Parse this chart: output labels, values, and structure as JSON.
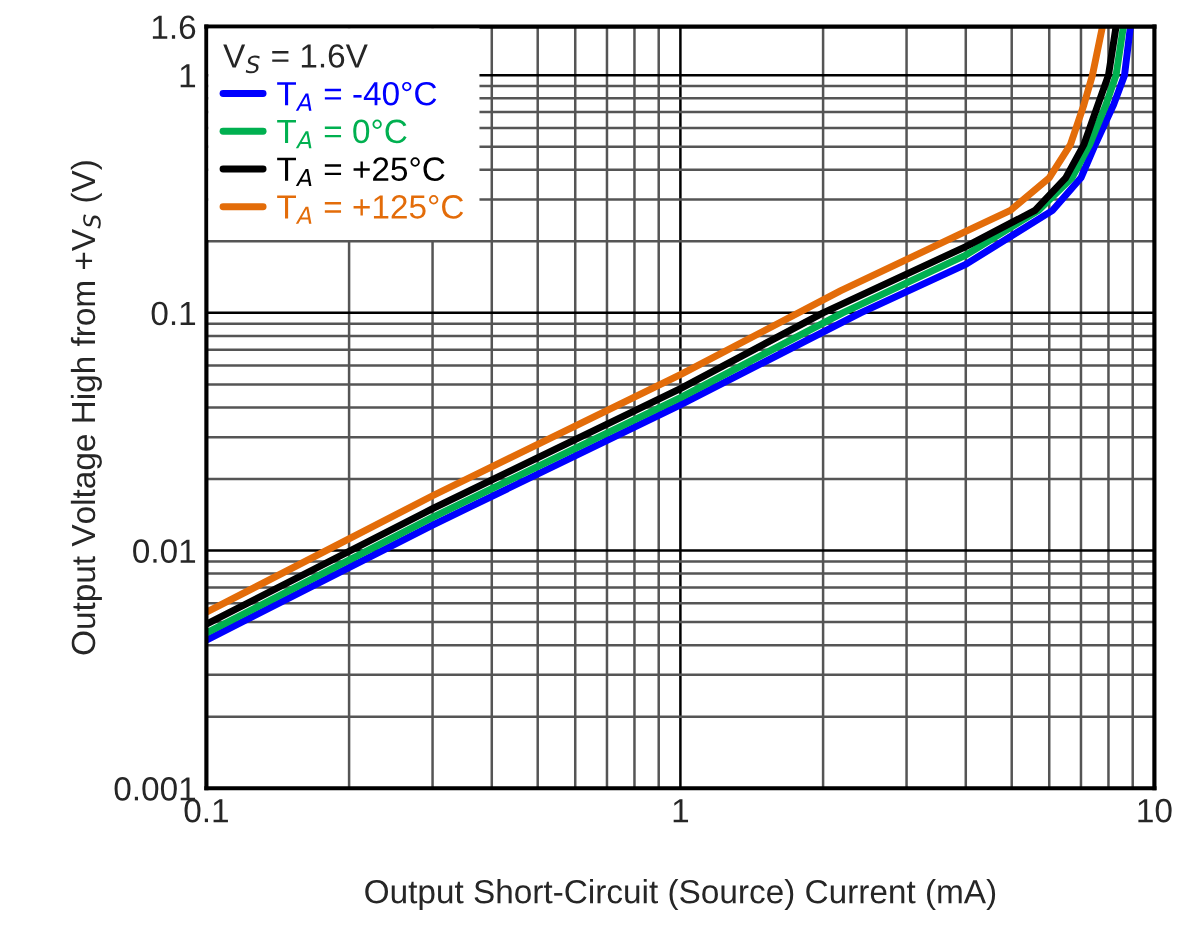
{
  "chart_data": {
    "type": "line",
    "xlabel": "Output Short-Circuit (Source) Current (mA)",
    "ylabel": "Output Voltage High from +V$_{S}$ (V)",
    "legend_title": "V$_{S}$ = 1.6V",
    "log": "xy",
    "grid": true,
    "legend": "top left",
    "line_style": "solid",
    "xlim": [
      0.1,
      10
    ],
    "xticks": [
      0.1,
      1,
      10
    ],
    "ylim": [
      0.001,
      1.6
    ],
    "yticks": [
      0.001,
      0.01,
      0.1,
      1,
      1.6
    ],
    "series": [
      {
        "name": "T$_{A}$ = -40°C",
        "color": "#0000ff",
        "x": [
          0.1,
          0.3,
          1,
          2.4,
          4,
          6.1,
          7.0,
          7.5,
          8.2,
          8.65,
          8.9
        ],
        "values": [
          0.0042,
          0.0128,
          0.041,
          0.1,
          0.16,
          0.27,
          0.37,
          0.51,
          0.75,
          1.0,
          1.6
        ]
      },
      {
        "name": "T$_{A}$ = 0°C",
        "color": "#00b050",
        "x": [
          0.1,
          0.3,
          1,
          2.2,
          4,
          5.7,
          6.7,
          7.3,
          7.9,
          8.3,
          8.6
        ],
        "values": [
          0.0045,
          0.0138,
          0.044,
          0.1,
          0.175,
          0.27,
          0.37,
          0.51,
          0.75,
          1.0,
          1.6
        ]
      },
      {
        "name": "T$_{A}$ = +25°C",
        "color": "#000000",
        "x": [
          0.1,
          0.3,
          1,
          2,
          4,
          5.6,
          6.5,
          7.1,
          7.6,
          8.0,
          8.3
        ],
        "values": [
          0.0049,
          0.015,
          0.048,
          0.1,
          0.19,
          0.27,
          0.37,
          0.51,
          0.75,
          1.0,
          1.6
        ]
      },
      {
        "name": "T$_{A}$ = +125°C",
        "color": "#e36c09",
        "x": [
          0.1,
          0.3,
          1,
          2.18,
          4,
          4.97,
          6,
          6.65,
          7.1,
          7.4,
          7.77
        ],
        "values": [
          0.0055,
          0.017,
          0.055,
          0.124,
          0.22,
          0.27,
          0.37,
          0.51,
          0.75,
          1.0,
          1.6
        ]
      }
    ]
  }
}
